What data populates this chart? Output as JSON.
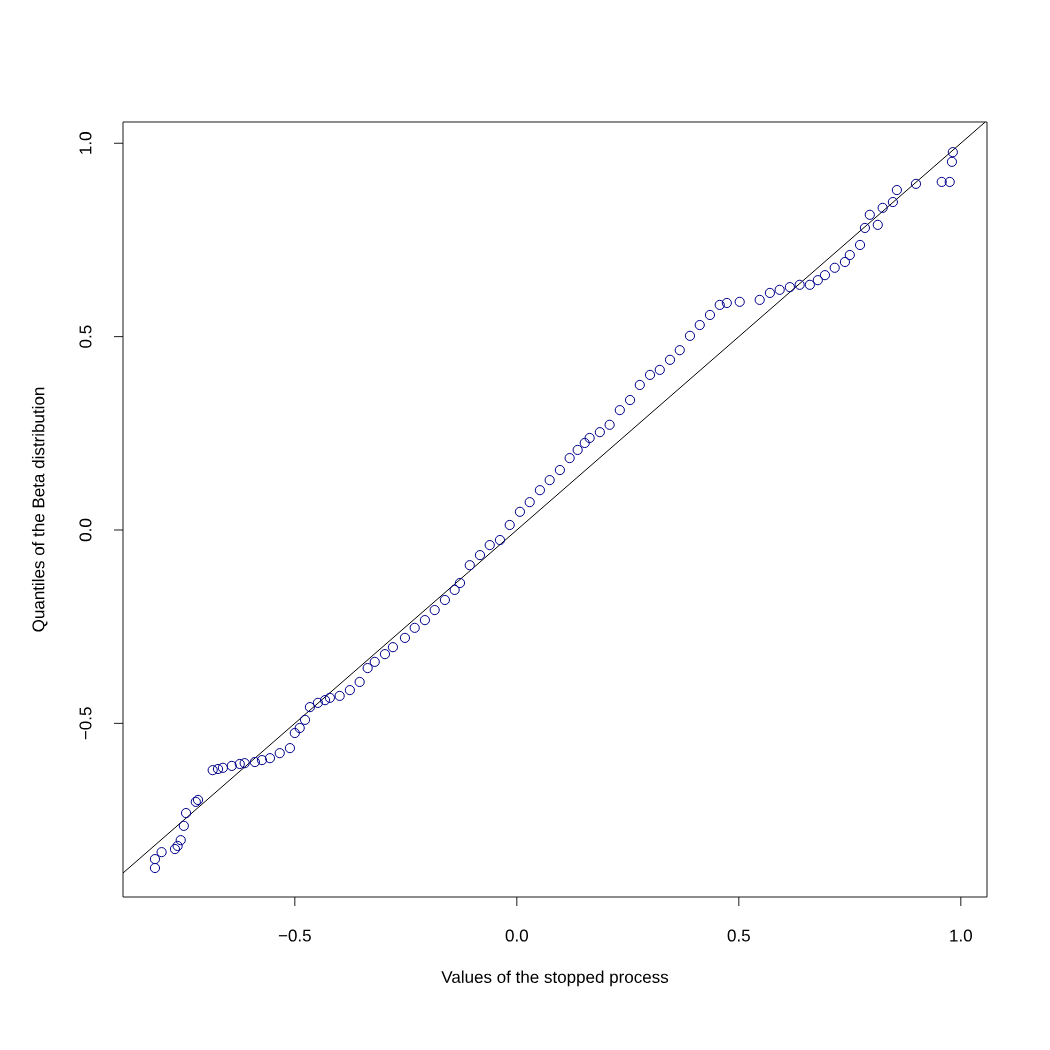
{
  "chart_data": {
    "type": "scatter",
    "xlabel": "Values of the stopped process",
    "ylabel": "Quantiles of the Beta distribution",
    "xlim": [
      -0.887,
      1.059
    ],
    "ylim": [
      -0.949,
      1.055
    ],
    "xticks": [
      {
        "value": -0.5,
        "label": "−0.5"
      },
      {
        "value": 0,
        "label": "0.0"
      },
      {
        "value": 0.5,
        "label": "0.5"
      },
      {
        "value": 1,
        "label": "1.0"
      }
    ],
    "yticks": [
      {
        "value": -0.5,
        "label": "−0.5"
      },
      {
        "value": 0,
        "label": "0.0"
      },
      {
        "value": 0.5,
        "label": "0.5"
      },
      {
        "value": 1,
        "label": "1.0"
      }
    ],
    "series": [
      {
        "color": "#00008b",
        "marker": "circle",
        "x": [
          -0.815,
          -0.815,
          -0.8,
          -0.77,
          -0.764,
          -0.757,
          -0.75,
          -0.745,
          -0.723,
          -0.718,
          -0.685,
          -0.673,
          -0.662,
          -0.642,
          -0.624,
          -0.613,
          -0.59,
          -0.574,
          -0.556,
          -0.534,
          -0.511,
          -0.5,
          -0.489,
          -0.477,
          -0.466,
          -0.448,
          -0.432,
          -0.421,
          -0.399,
          -0.376,
          -0.354,
          -0.336,
          -0.32,
          -0.297,
          -0.279,
          -0.252,
          -0.23,
          -0.207,
          -0.185,
          -0.162,
          -0.14,
          -0.128,
          -0.106,
          -0.083,
          -0.061,
          -0.038,
          -0.016,
          0.007,
          0.029,
          0.052,
          0.074,
          0.097,
          0.119,
          0.137,
          0.153,
          0.164,
          0.187,
          0.209,
          0.232,
          0.255,
          0.277,
          0.3,
          0.322,
          0.345,
          0.367,
          0.39,
          0.412,
          0.435,
          0.457,
          0.473,
          0.502,
          0.547,
          0.57,
          0.592,
          0.615,
          0.637,
          0.66,
          0.678,
          0.694,
          0.716,
          0.739,
          0.75,
          0.773,
          0.784,
          0.795,
          0.813,
          0.824,
          0.847,
          0.856,
          0.899,
          0.957,
          0.975,
          0.98,
          0.982
        ],
        "values": [
          -0.874,
          -0.851,
          -0.833,
          -0.825,
          -0.817,
          -0.802,
          -0.765,
          -0.732,
          -0.703,
          -0.698,
          -0.621,
          -0.618,
          -0.615,
          -0.61,
          -0.605,
          -0.603,
          -0.6,
          -0.595,
          -0.59,
          -0.577,
          -0.564,
          -0.525,
          -0.512,
          -0.491,
          -0.458,
          -0.447,
          -0.44,
          -0.434,
          -0.429,
          -0.414,
          -0.393,
          -0.357,
          -0.341,
          -0.321,
          -0.303,
          -0.279,
          -0.253,
          -0.233,
          -0.207,
          -0.181,
          -0.155,
          -0.137,
          -0.091,
          -0.065,
          -0.039,
          -0.026,
          0.013,
          0.047,
          0.072,
          0.103,
          0.129,
          0.155,
          0.186,
          0.207,
          0.225,
          0.238,
          0.253,
          0.272,
          0.31,
          0.336,
          0.375,
          0.401,
          0.414,
          0.44,
          0.465,
          0.502,
          0.53,
          0.556,
          0.582,
          0.587,
          0.59,
          0.595,
          0.613,
          0.621,
          0.628,
          0.634,
          0.634,
          0.646,
          0.659,
          0.678,
          0.693,
          0.711,
          0.737,
          0.781,
          0.815,
          0.789,
          0.833,
          0.848,
          0.879,
          0.895,
          0.9,
          0.9,
          0.952,
          0.977
        ]
      },
      {
        "type": "line",
        "color": "#000000",
        "marker": "none",
        "x": [
          -0.887,
          1.055
        ],
        "values": [
          -0.887,
          1.055
        ]
      }
    ]
  }
}
